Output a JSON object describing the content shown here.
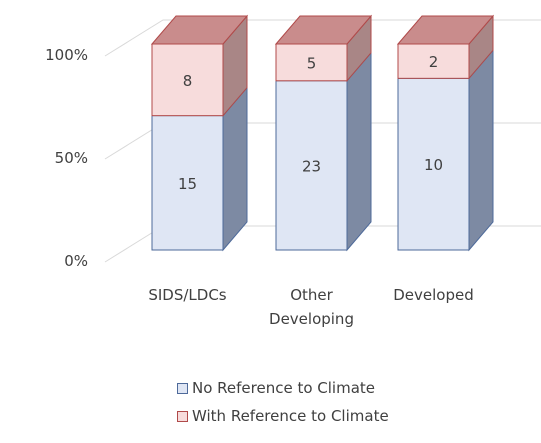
{
  "chart_data": {
    "type": "bar",
    "stacked": true,
    "percent_stacked": true,
    "three_d": true,
    "categories": [
      [
        "SIDS/LDCs"
      ],
      [
        "Other",
        "Developing"
      ],
      [
        "Developed"
      ]
    ],
    "series": [
      {
        "name": "No Reference to Climate",
        "values": [
          15,
          23,
          10
        ],
        "color": "#dfe6f4"
      },
      {
        "name": "With Reference to Climate",
        "values": [
          8,
          5,
          2
        ],
        "color": "#f7dcdc"
      }
    ],
    "y_ticks": [
      "0%",
      "50%",
      "100%"
    ],
    "ylim": [
      0,
      100
    ],
    "grid": true,
    "legend_position": "bottom"
  }
}
